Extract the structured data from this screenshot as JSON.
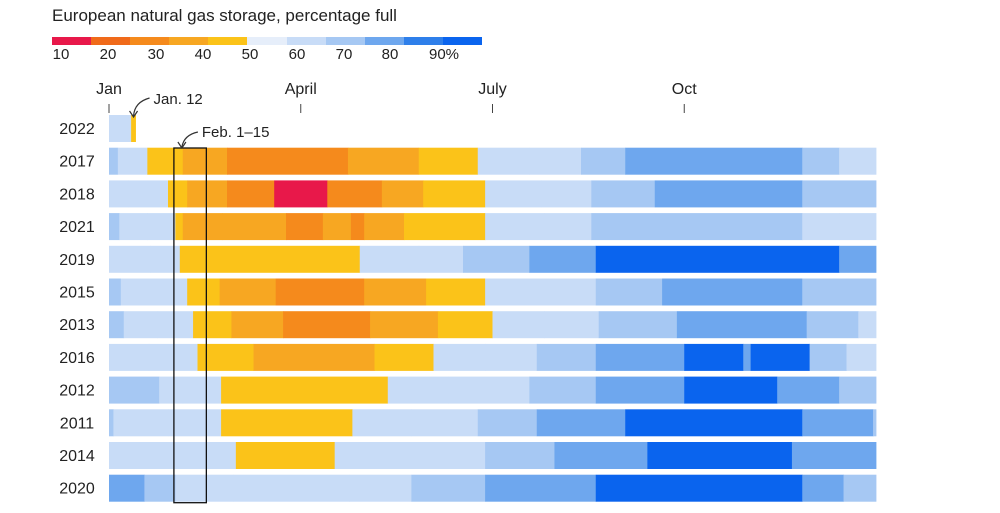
{
  "chart_data": {
    "type": "heatmap",
    "title": "European natural gas storage, percentage full",
    "legend": {
      "placement": "top-left",
      "labels": [
        "10",
        "20",
        "30",
        "40",
        "50",
        "60",
        "70",
        "80",
        "90%"
      ],
      "bins": [
        {
          "min": 0,
          "color": "#e8184a"
        },
        {
          "min": 15,
          "color": "#f06a1a"
        },
        {
          "min": 25,
          "color": "#f58a1c"
        },
        {
          "min": 35,
          "color": "#f7a722"
        },
        {
          "min": 45,
          "color": "#fbc319"
        },
        {
          "min": 55,
          "color": "#e6eefa"
        },
        {
          "min": 65,
          "color": "#c8dcf7"
        },
        {
          "min": 75,
          "color": "#a6c8f3"
        },
        {
          "min": 85,
          "color": "#6ea7ee"
        },
        {
          "min": 92,
          "color": "#2e7fea"
        },
        {
          "min": 97,
          "color": "#0a64ee"
        }
      ]
    },
    "x_axis": {
      "ticks": [
        {
          "label": "Jan",
          "week": 0
        },
        {
          "label": "April",
          "week": 13
        },
        {
          "label": "July",
          "week": 26
        },
        {
          "label": "Oct",
          "week": 39
        }
      ],
      "weeks": 52
    },
    "annotations": [
      {
        "label": "Jan. 12",
        "row": "2022"
      },
      {
        "label": "Feb. 1–15",
        "week_start": 4.4,
        "week_end": 6.6
      }
    ],
    "rows": [
      {
        "year": "2022",
        "segments": [
          [
            0,
            1.5,
            65
          ],
          [
            1.5,
            1.8,
            45
          ]
        ]
      },
      {
        "year": "2017",
        "segments": [
          [
            0,
            0.6,
            75
          ],
          [
            0.6,
            2.6,
            65
          ],
          [
            2.6,
            5,
            45
          ],
          [
            5,
            8,
            35
          ],
          [
            8,
            16.2,
            25
          ],
          [
            16.2,
            21,
            35
          ],
          [
            21,
            25,
            45
          ],
          [
            25,
            28.5,
            65
          ],
          [
            28.5,
            32,
            72
          ],
          [
            32,
            35,
            78
          ],
          [
            35,
            47,
            88
          ],
          [
            47,
            49.5,
            80
          ],
          [
            49.5,
            52,
            72
          ]
        ]
      },
      {
        "year": "2018",
        "segments": [
          [
            0,
            1.3,
            72
          ],
          [
            1.3,
            4,
            65
          ],
          [
            4,
            5.3,
            45
          ],
          [
            5.3,
            8,
            35
          ],
          [
            8,
            11.2,
            25
          ],
          [
            11.2,
            14.8,
            8
          ],
          [
            14.8,
            18.5,
            25
          ],
          [
            18.5,
            21.3,
            35
          ],
          [
            21.3,
            25.5,
            45
          ],
          [
            25.5,
            29.3,
            65
          ],
          [
            29.3,
            32.7,
            72
          ],
          [
            32.7,
            37,
            78
          ],
          [
            37,
            47,
            88
          ],
          [
            47,
            52,
            78
          ]
        ]
      },
      {
        "year": "2021",
        "segments": [
          [
            0,
            0.7,
            75
          ],
          [
            0.7,
            2.6,
            65
          ],
          [
            2.6,
            4.5,
            72
          ],
          [
            4.5,
            5,
            45
          ],
          [
            5,
            7.7,
            35
          ],
          [
            7.7,
            12,
            35
          ],
          [
            12,
            14.5,
            25
          ],
          [
            14.5,
            16.4,
            35
          ],
          [
            16.4,
            17.3,
            25
          ],
          [
            17.3,
            20,
            35
          ],
          [
            20,
            25.5,
            45
          ],
          [
            25.5,
            29.5,
            65
          ],
          [
            29.5,
            32.7,
            72
          ],
          [
            32.7,
            37,
            78
          ],
          [
            37,
            47,
            82
          ],
          [
            47,
            49.5,
            72
          ],
          [
            49.5,
            52,
            65
          ]
        ]
      },
      {
        "year": "2019",
        "segments": [
          [
            0,
            2.8,
            72
          ],
          [
            2.8,
            4.8,
            65
          ],
          [
            4.8,
            17,
            45
          ],
          [
            17,
            21,
            65
          ],
          [
            21,
            24,
            72
          ],
          [
            24,
            28.5,
            78
          ],
          [
            28.5,
            33,
            88
          ],
          [
            33,
            49.5,
            98
          ],
          [
            49.5,
            52,
            88
          ]
        ]
      },
      {
        "year": "2015",
        "segments": [
          [
            0,
            0.8,
            78
          ],
          [
            0.8,
            3.4,
            72
          ],
          [
            3.4,
            5.3,
            65
          ],
          [
            5.3,
            7.5,
            45
          ],
          [
            7.5,
            11.3,
            35
          ],
          [
            11.3,
            17.3,
            25
          ],
          [
            17.3,
            21.5,
            35
          ],
          [
            21.5,
            25.5,
            45
          ],
          [
            25.5,
            29,
            65
          ],
          [
            29,
            33,
            72
          ],
          [
            33,
            37.5,
            78
          ],
          [
            37.5,
            47,
            88
          ],
          [
            47,
            52,
            78
          ]
        ]
      },
      {
        "year": "2013",
        "segments": [
          [
            0,
            1,
            78
          ],
          [
            1,
            3.3,
            72
          ],
          [
            3.3,
            5.7,
            65
          ],
          [
            5.7,
            8.3,
            45
          ],
          [
            8.3,
            11.8,
            35
          ],
          [
            11.8,
            17.7,
            25
          ],
          [
            17.7,
            22.3,
            35
          ],
          [
            22.3,
            26,
            45
          ],
          [
            26,
            29.5,
            65
          ],
          [
            29.5,
            33.2,
            72
          ],
          [
            33.2,
            38.5,
            78
          ],
          [
            38.5,
            47.3,
            88
          ],
          [
            47.3,
            50.8,
            78
          ],
          [
            50.8,
            52,
            72
          ]
        ]
      },
      {
        "year": "2016",
        "segments": [
          [
            0,
            2.7,
            72
          ],
          [
            2.7,
            6,
            65
          ],
          [
            6,
            9.8,
            45
          ],
          [
            9.8,
            18,
            35
          ],
          [
            18,
            22,
            45
          ],
          [
            22,
            25.5,
            65
          ],
          [
            25.5,
            29,
            72
          ],
          [
            29,
            33,
            78
          ],
          [
            33,
            39,
            88
          ],
          [
            39,
            43,
            97
          ],
          [
            43,
            43.5,
            88
          ],
          [
            43.5,
            47.5,
            97
          ],
          [
            47.5,
            50,
            80
          ],
          [
            50,
            52,
            72
          ]
        ]
      },
      {
        "year": "2012",
        "segments": [
          [
            0,
            3.4,
            78
          ],
          [
            3.4,
            5,
            72
          ],
          [
            5,
            7.6,
            65
          ],
          [
            7.6,
            18.9,
            45
          ],
          [
            18.9,
            23,
            65
          ],
          [
            23,
            28.5,
            72
          ],
          [
            28.5,
            33,
            78
          ],
          [
            33,
            39,
            88
          ],
          [
            39,
            45.3,
            97
          ],
          [
            45.3,
            49.5,
            88
          ],
          [
            49.5,
            52,
            78
          ]
        ]
      },
      {
        "year": "2011",
        "segments": [
          [
            0,
            0.3,
            80
          ],
          [
            0.3,
            4,
            72
          ],
          [
            4,
            7.6,
            65
          ],
          [
            7.6,
            16.5,
            45
          ],
          [
            16.5,
            20.5,
            65
          ],
          [
            20.5,
            25,
            72
          ],
          [
            25,
            29,
            78
          ],
          [
            29,
            35,
            88
          ],
          [
            35,
            47,
            97
          ],
          [
            47,
            51.8,
            88
          ],
          [
            51.8,
            52,
            78
          ]
        ]
      },
      {
        "year": "2014",
        "segments": [
          [
            0,
            3.9,
            72
          ],
          [
            3.9,
            5.3,
            65
          ],
          [
            5.3,
            8.6,
            65
          ],
          [
            8.6,
            15.3,
            45
          ],
          [
            15.3,
            20.7,
            65
          ],
          [
            20.7,
            25.5,
            72
          ],
          [
            25.5,
            30.2,
            78
          ],
          [
            30.2,
            36.5,
            88
          ],
          [
            36.5,
            46.3,
            97
          ],
          [
            46.3,
            52,
            88
          ]
        ]
      },
      {
        "year": "2020",
        "segments": [
          [
            0,
            2.4,
            88
          ],
          [
            2.4,
            4.5,
            78
          ],
          [
            4.5,
            6.2,
            72
          ],
          [
            6.2,
            8.4,
            72
          ],
          [
            8.4,
            16.3,
            65
          ],
          [
            16.3,
            20.5,
            72
          ],
          [
            20.5,
            25.5,
            78
          ],
          [
            25.5,
            33,
            88
          ],
          [
            33,
            47,
            97
          ],
          [
            47,
            49.8,
            88
          ],
          [
            49.8,
            52,
            78
          ]
        ]
      }
    ]
  }
}
